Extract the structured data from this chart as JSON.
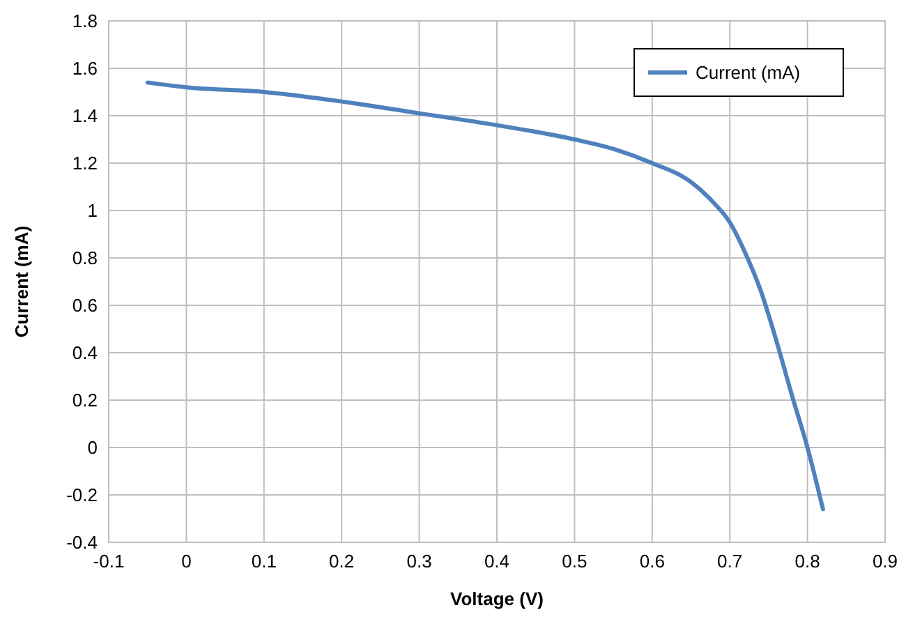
{
  "chart_data": {
    "type": "line",
    "xlabel": "Voltage (V)",
    "ylabel": "Current (mA)",
    "x": [
      -0.05,
      0,
      0.1,
      0.2,
      0.3,
      0.4,
      0.5,
      0.55,
      0.6,
      0.65,
      0.68,
      0.7,
      0.72,
      0.74,
      0.76,
      0.78,
      0.8,
      0.82
    ],
    "series": [
      {
        "name": "Current (mA)",
        "color": "#4f81bd",
        "values": [
          1.54,
          1.52,
          1.5,
          1.46,
          1.41,
          1.36,
          1.3,
          1.26,
          1.2,
          1.12,
          1.03,
          0.95,
          0.82,
          0.66,
          0.45,
          0.22,
          0,
          -0.26
        ]
      }
    ],
    "xlim": [
      -0.1,
      0.9
    ],
    "xticks": [
      -0.1,
      0,
      0.1,
      0.2,
      0.3,
      0.4,
      0.5,
      0.6,
      0.7,
      0.8,
      0.9
    ],
    "ylim": [
      -0.4,
      1.8
    ],
    "yticks": [
      -0.4,
      -0.2,
      0,
      0.2,
      0.4,
      0.6,
      0.8,
      1,
      1.2,
      1.4,
      1.6,
      1.8
    ],
    "grid": true,
    "legend": "top right",
    "marker": "none",
    "line_style": "solid"
  }
}
